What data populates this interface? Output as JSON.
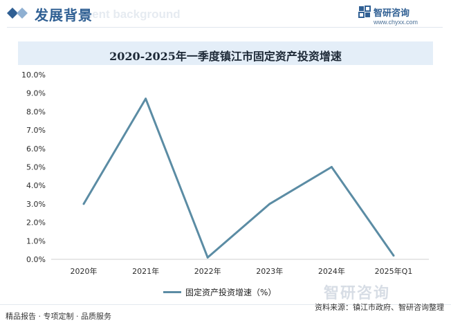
{
  "header": {
    "title": "发展背景",
    "subtitle": "ment background",
    "logo_text": "智研咨询",
    "logo_url": "www.chyxx.com",
    "accent": "#2f5f93"
  },
  "chart_data": {
    "type": "line",
    "title": "2020-2025年一季度镇江市固定资产投资增速",
    "categories": [
      "2020年",
      "2021年",
      "2022年",
      "2023年",
      "2024年",
      "2025年Q1"
    ],
    "series": [
      {
        "name": "固定资产投资增速（%）",
        "values": [
          3.0,
          8.7,
          0.1,
          3.0,
          5.0,
          0.2
        ],
        "color": "#5b8ca4"
      }
    ],
    "y_ticks": [
      "0.0%",
      "1.0%",
      "2.0%",
      "3.0%",
      "4.0%",
      "5.0%",
      "6.0%",
      "7.0%",
      "8.0%",
      "9.0%",
      "10.0%"
    ],
    "ylim": [
      0,
      10
    ],
    "grid": false,
    "legend_position": "bottom-center"
  },
  "footer": {
    "left": "精品报告 · 专项定制 · 品质服务",
    "right": "资料来源：镇江市政府、智研咨询整理",
    "watermark": "智研咨询"
  }
}
